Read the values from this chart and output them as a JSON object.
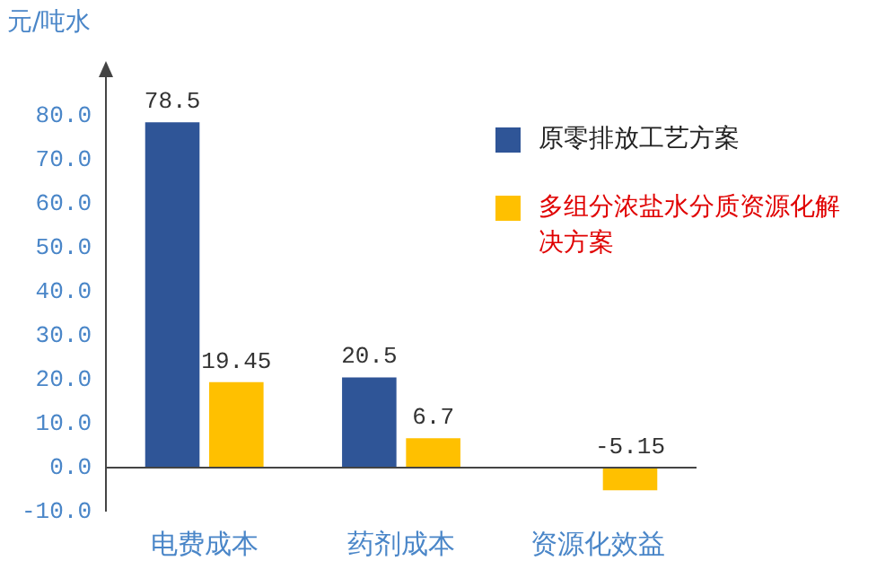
{
  "chart_data": {
    "type": "bar",
    "ylabel": "元/吨水",
    "categories": [
      "电费成本",
      "药剂成本",
      "资源化效益"
    ],
    "series": [
      {
        "name": "原零排放工艺方案",
        "color": "#2f5597",
        "values": [
          78.5,
          20.5,
          null
        ]
      },
      {
        "name": "多组分浓盐水分质资源化解决方案",
        "color": "#ffc000",
        "values": [
          19.45,
          6.7,
          -5.15
        ]
      }
    ],
    "ylim": [
      -10,
      90
    ],
    "yticks": [
      {
        "value": -10,
        "label": "-10.0"
      },
      {
        "value": 0,
        "label": "0.0"
      },
      {
        "value": 10,
        "label": "10.0"
      },
      {
        "value": 20,
        "label": "20.0"
      },
      {
        "value": 30,
        "label": "30.0"
      },
      {
        "value": 40,
        "label": "40.0"
      },
      {
        "value": 50,
        "label": "50.0"
      },
      {
        "value": 60,
        "label": "60.0"
      },
      {
        "value": 70,
        "label": "70.0"
      },
      {
        "value": 80,
        "label": "80.0"
      }
    ],
    "data_labels": true,
    "grid": false,
    "legend": "top right"
  }
}
